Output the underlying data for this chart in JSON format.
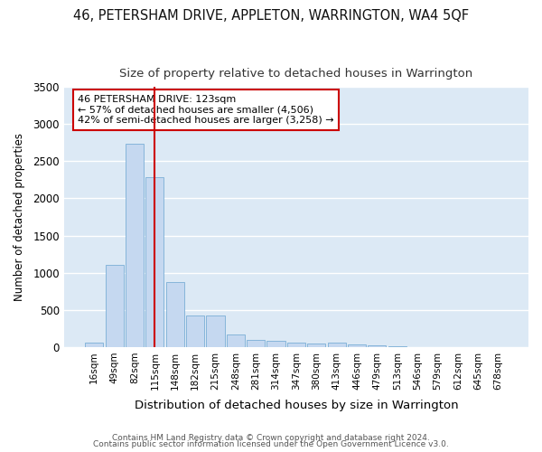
{
  "title": "46, PETERSHAM DRIVE, APPLETON, WARRINGTON, WA4 5QF",
  "subtitle": "Size of property relative to detached houses in Warrington",
  "xlabel": "Distribution of detached houses by size in Warrington",
  "ylabel": "Number of detached properties",
  "bar_color": "#c5d8f0",
  "bar_edge_color": "#7aaed6",
  "plot_bg_color": "#dce9f5",
  "fig_bg_color": "#ffffff",
  "grid_color": "#ffffff",
  "categories": [
    "16sqm",
    "49sqm",
    "82sqm",
    "115sqm",
    "148sqm",
    "182sqm",
    "215sqm",
    "248sqm",
    "281sqm",
    "314sqm",
    "347sqm",
    "380sqm",
    "413sqm",
    "446sqm",
    "479sqm",
    "513sqm",
    "546sqm",
    "579sqm",
    "612sqm",
    "645sqm",
    "678sqm"
  ],
  "values": [
    55,
    1110,
    2730,
    2290,
    880,
    430,
    430,
    170,
    100,
    90,
    55,
    45,
    55,
    30,
    20,
    5,
    0,
    0,
    0,
    0,
    0
  ],
  "ylim": [
    0,
    3500
  ],
  "yticks": [
    0,
    500,
    1000,
    1500,
    2000,
    2500,
    3000,
    3500
  ],
  "vline_x": 3.5,
  "vline_color": "#cc0000",
  "annotation_text": "46 PETERSHAM DRIVE: 123sqm\n← 57% of detached houses are smaller (4,506)\n42% of semi-detached houses are larger (3,258) →",
  "annotation_box_color": "#ffffff",
  "annotation_box_edge_color": "#cc0000",
  "footer_line1": "Contains HM Land Registry data © Crown copyright and database right 2024.",
  "footer_line2": "Contains public sector information licensed under the Open Government Licence v3.0."
}
